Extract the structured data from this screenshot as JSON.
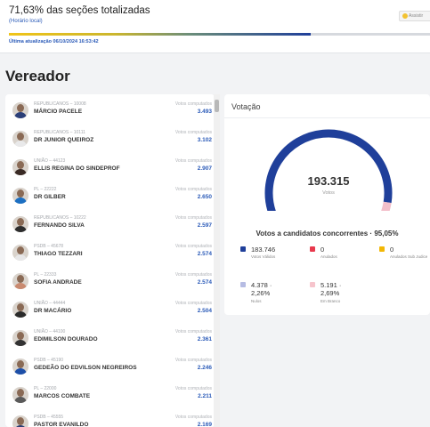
{
  "header": {
    "title": "71,63% das seções totalizadas",
    "subtitle": "(Horário local)",
    "assist_label": "Assistir",
    "progress_percent": 71.63,
    "update": "Última atualização 06/10/2024 16:53:42"
  },
  "section_title": "Vereador",
  "votes_label": "Votos computados",
  "candidates": [
    {
      "party": "REPUBLICANOS – 10008",
      "name": "MÁRCIO PACELE",
      "votes": "3.493"
    },
    {
      "party": "REPUBLICANOS – 10111",
      "name": "DR JUNIOR QUEIROZ",
      "votes": "3.102"
    },
    {
      "party": "UNIÃO – 44123",
      "name": "ELLIS REGINA DO SINDEPROF",
      "votes": "2.907"
    },
    {
      "party": "PL – 22222",
      "name": "DR GILBER",
      "votes": "2.650"
    },
    {
      "party": "REPUBLICANOS – 10222",
      "name": "FERNANDO SILVA",
      "votes": "2.597"
    },
    {
      "party": "PSDB – 45678",
      "name": "THIAGO TEZZARI",
      "votes": "2.574"
    },
    {
      "party": "PL – 22333",
      "name": "SOFIA ANDRADE",
      "votes": "2.574"
    },
    {
      "party": "UNIÃO – 44444",
      "name": "DR MACÁRIO",
      "votes": "2.504"
    },
    {
      "party": "UNIÃO – 44100",
      "name": "EDIMILSON DOURADO",
      "votes": "2.361"
    },
    {
      "party": "PSDB – 45190",
      "name": "GEDEÃO DO EDVILSON NEGREIROS",
      "votes": "2.246"
    },
    {
      "party": "PL – 22000",
      "name": "MARCOS COMBATE",
      "votes": "2.211"
    },
    {
      "party": "PSDB – 45555",
      "name": "PASTOR EVANILDO",
      "votes": "2.169"
    }
  ],
  "votacao": {
    "title": "Votação",
    "total": "193.315",
    "total_label": "Votos",
    "gauge_fraction": 0.95,
    "concorrentes_title": "Votos a candidatos concorrentes · 95,05%",
    "stats": [
      {
        "value": "183.746",
        "label": "Votos Válidos",
        "color": "#1f3f9a"
      },
      {
        "value": "0",
        "label": "Anulados",
        "color": "#e8394d"
      },
      {
        "value": "0",
        "label": "Anulados Sub Judice",
        "color": "#f2b705"
      },
      {
        "value": "4.378 · 2,26%",
        "label": "Nulos",
        "color": "#b6bce3"
      },
      {
        "value": "5.191 · 2,69%",
        "label": "Em Branco",
        "color": "#f6c4cc"
      }
    ]
  }
}
